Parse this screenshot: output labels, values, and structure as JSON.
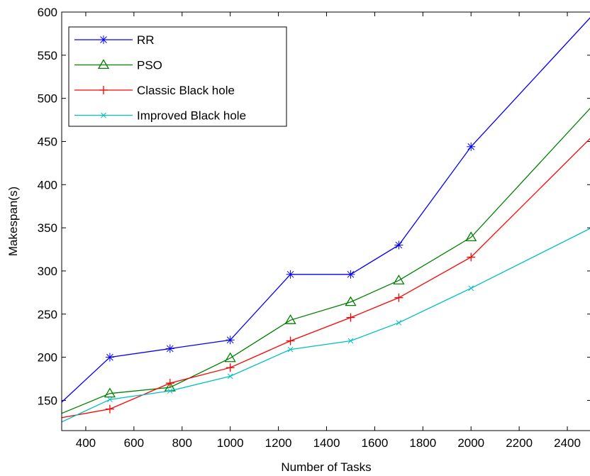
{
  "chart_data": {
    "type": "line",
    "xlabel": "Number of Tasks",
    "ylabel": "Makespan(s)",
    "xlim": [
      300,
      2500
    ],
    "ylim": [
      115,
      600
    ],
    "xticks": [
      400,
      600,
      800,
      1000,
      1200,
      1400,
      1600,
      1800,
      2000,
      2200,
      2400
    ],
    "yticks": [
      150,
      200,
      250,
      300,
      350,
      400,
      450,
      500,
      550,
      600
    ],
    "grid": false,
    "legend_position": "top-left",
    "x": [
      300,
      500,
      750,
      1000,
      1250,
      1500,
      1700,
      2000,
      2500
    ],
    "series": [
      {
        "name": "RR",
        "color": "#0000ff",
        "marker": "asterisk",
        "values": [
          148,
          200,
          210,
          220,
          296,
          296,
          330,
          444,
          595
        ]
      },
      {
        "name": "PSO",
        "color": "#008000",
        "marker": "triangle",
        "values": [
          135,
          158,
          165,
          199,
          243,
          264,
          289,
          339,
          490
        ]
      },
      {
        "name": "Classic Black hole",
        "color": "#ff0000",
        "marker": "plus",
        "values": [
          130,
          140,
          170,
          188,
          219,
          246,
          269,
          316,
          455
        ]
      },
      {
        "name": "Improved Black hole",
        "color": "#00bfbf",
        "marker": "x",
        "values": [
          125,
          151,
          161,
          178,
          209,
          219,
          240,
          280,
          350
        ]
      }
    ]
  }
}
